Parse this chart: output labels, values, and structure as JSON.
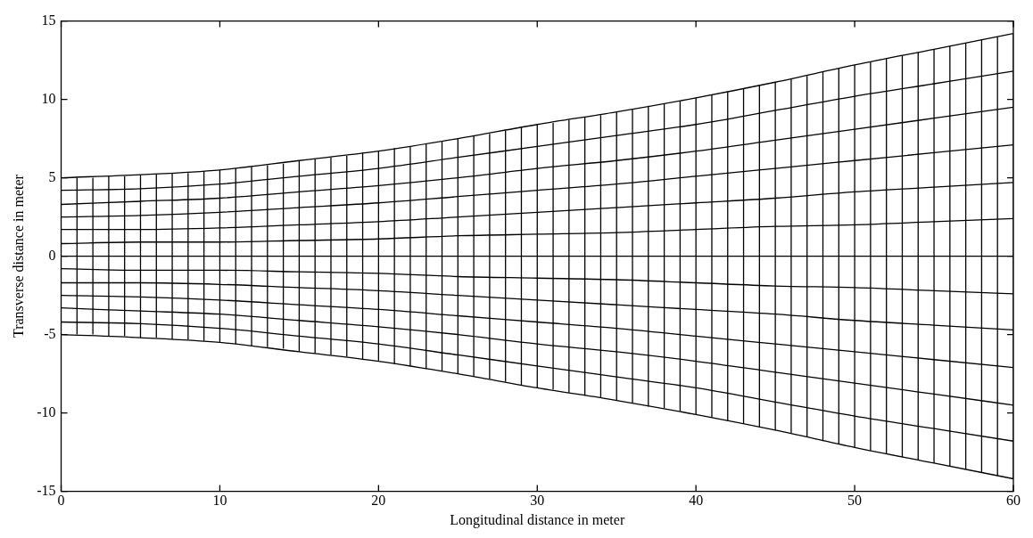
{
  "chart_data": {
    "type": "line",
    "xlabel": "Longitudinal distance in meter",
    "ylabel": "Transverse distance in meter",
    "xlim": [
      0,
      60
    ],
    "ylim": [
      -15,
      15
    ],
    "xticks": [
      0,
      10,
      20,
      30,
      40,
      50,
      60
    ],
    "yticks": [
      -15,
      -10,
      -5,
      0,
      5,
      10,
      15
    ],
    "grid": false,
    "legend": false,
    "marker": "none",
    "x": [
      0,
      5,
      10,
      15,
      20,
      25,
      30,
      35,
      40,
      45,
      50,
      55,
      60
    ],
    "series": [
      {
        "color": "#000000",
        "values": [
          5,
          5.2,
          5.5,
          6.1,
          6.7,
          7.5,
          8.4,
          9.2,
          10.1,
          11.1,
          12.2,
          13.2,
          14.2
        ]
      },
      {
        "color": "#000000",
        "values": [
          4.2,
          4.3,
          4.6,
          5.1,
          5.6,
          6.3,
          7,
          7.7,
          8.4,
          9.3,
          10.2,
          11,
          11.8
        ]
      },
      {
        "color": "#000000",
        "values": [
          3.3,
          3.5,
          3.7,
          4.1,
          4.5,
          5,
          5.6,
          6.1,
          6.7,
          7.4,
          8.1,
          8.8,
          9.5
        ]
      },
      {
        "color": "#000000",
        "values": [
          2.5,
          2.6,
          2.8,
          3.1,
          3.4,
          3.8,
          4.2,
          4.6,
          5.1,
          5.6,
          6.1,
          6.6,
          7.1
        ]
      },
      {
        "color": "#000000",
        "values": [
          1.7,
          1.7,
          1.8,
          2,
          2.2,
          2.5,
          2.8,
          3.1,
          3.4,
          3.7,
          4.1,
          4.4,
          4.7
        ]
      },
      {
        "color": "#000000",
        "values": [
          0.8,
          0.9,
          0.9,
          1,
          1.1,
          1.3,
          1.4,
          1.5,
          1.7,
          1.9,
          2,
          2.2,
          2.4
        ]
      },
      {
        "color": "#000000",
        "values": [
          0,
          0,
          0,
          0,
          0,
          0,
          0,
          0,
          0,
          0,
          0,
          0,
          0
        ]
      },
      {
        "color": "#000000",
        "values": [
          -0.8,
          -0.9,
          -0.9,
          -1,
          -1.1,
          -1.3,
          -1.4,
          -1.5,
          -1.7,
          -1.9,
          -2,
          -2.2,
          -2.4
        ]
      },
      {
        "color": "#000000",
        "values": [
          -1.7,
          -1.7,
          -1.8,
          -2,
          -2.2,
          -2.5,
          -2.8,
          -3.1,
          -3.4,
          -3.7,
          -4.1,
          -4.4,
          -4.7
        ]
      },
      {
        "color": "#000000",
        "values": [
          -2.5,
          -2.6,
          -2.8,
          -3.1,
          -3.4,
          -3.8,
          -4.2,
          -4.6,
          -5.1,
          -5.6,
          -6.1,
          -6.6,
          -7.1
        ]
      },
      {
        "color": "#000000",
        "values": [
          -3.3,
          -3.5,
          -3.7,
          -4.1,
          -4.5,
          -5,
          -5.6,
          -6.1,
          -6.7,
          -7.4,
          -8.1,
          -8.8,
          -9.5
        ]
      },
      {
        "color": "#000000",
        "values": [
          -4.2,
          -4.3,
          -4.6,
          -5.1,
          -5.6,
          -6.3,
          -7,
          -7.7,
          -8.4,
          -9.3,
          -10.2,
          -11,
          -11.8
        ]
      },
      {
        "color": "#000000",
        "values": [
          -5,
          -5.2,
          -5.5,
          -6.1,
          -6.7,
          -7.5,
          -8.4,
          -9.2,
          -10.1,
          -11.1,
          -12.2,
          -13.2,
          -14.2
        ]
      },
      {
        "color": "#000000",
        "x": [
          1,
          1
        ],
        "values": [
          -5,
          5
        ]
      },
      {
        "color": "#000000",
        "x": [
          2,
          2
        ],
        "values": [
          -5,
          5
        ]
      },
      {
        "color": "#000000",
        "x": [
          3,
          3
        ],
        "values": [
          -5.1,
          5.1
        ]
      },
      {
        "color": "#000000",
        "x": [
          4,
          4
        ],
        "values": [
          -5.1,
          5.1
        ]
      },
      {
        "color": "#000000",
        "x": [
          5,
          5
        ],
        "values": [
          -5.2,
          5.2
        ]
      },
      {
        "color": "#000000",
        "x": [
          6,
          6
        ],
        "values": [
          -5.2,
          5.2
        ]
      },
      {
        "color": "#000000",
        "x": [
          7,
          7
        ],
        "values": [
          -5.3,
          5.3
        ]
      },
      {
        "color": "#000000",
        "x": [
          8,
          8
        ],
        "values": [
          -5.3,
          5.3
        ]
      },
      {
        "color": "#000000",
        "x": [
          9,
          9
        ],
        "values": [
          -5.4,
          5.4
        ]
      },
      {
        "color": "#000000",
        "x": [
          10,
          10
        ],
        "values": [
          -5.5,
          5.5
        ]
      },
      {
        "color": "#000000",
        "x": [
          11,
          11
        ],
        "values": [
          -5.6,
          5.6
        ]
      },
      {
        "color": "#000000",
        "x": [
          12,
          12
        ],
        "values": [
          -5.7,
          5.7
        ]
      },
      {
        "color": "#000000",
        "x": [
          13,
          13
        ],
        "values": [
          -5.8,
          5.8
        ]
      },
      {
        "color": "#000000",
        "x": [
          14,
          14
        ],
        "values": [
          -5.9,
          5.9
        ]
      },
      {
        "color": "#000000",
        "x": [
          15,
          15
        ],
        "values": [
          -6.1,
          6.1
        ]
      },
      {
        "color": "#000000",
        "x": [
          16,
          16
        ],
        "values": [
          -6.2,
          6.2
        ]
      },
      {
        "color": "#000000",
        "x": [
          17,
          17
        ],
        "values": [
          -6.3,
          6.3
        ]
      },
      {
        "color": "#000000",
        "x": [
          18,
          18
        ],
        "values": [
          -6.4,
          6.4
        ]
      },
      {
        "color": "#000000",
        "x": [
          19,
          19
        ],
        "values": [
          -6.6,
          6.6
        ]
      },
      {
        "color": "#000000",
        "x": [
          20,
          20
        ],
        "values": [
          -6.7,
          6.7
        ]
      },
      {
        "color": "#000000",
        "x": [
          21,
          21
        ],
        "values": [
          -6.9,
          6.9
        ]
      },
      {
        "color": "#000000",
        "x": [
          22,
          22
        ],
        "values": [
          -7,
          7
        ]
      },
      {
        "color": "#000000",
        "x": [
          23,
          23
        ],
        "values": [
          -7.2,
          7.2
        ]
      },
      {
        "color": "#000000",
        "x": [
          24,
          24
        ],
        "values": [
          -7.3,
          7.3
        ]
      },
      {
        "color": "#000000",
        "x": [
          25,
          25
        ],
        "values": [
          -7.5,
          7.5
        ]
      },
      {
        "color": "#000000",
        "x": [
          26,
          26
        ],
        "values": [
          -7.7,
          7.7
        ]
      },
      {
        "color": "#000000",
        "x": [
          27,
          27
        ],
        "values": [
          -7.8,
          7.8
        ]
      },
      {
        "color": "#000000",
        "x": [
          28,
          28
        ],
        "values": [
          -8,
          8
        ]
      },
      {
        "color": "#000000",
        "x": [
          29,
          29
        ],
        "values": [
          -8.2,
          8.2
        ]
      },
      {
        "color": "#000000",
        "x": [
          30,
          30
        ],
        "values": [
          -8.4,
          8.4
        ]
      },
      {
        "color": "#000000",
        "x": [
          31,
          31
        ],
        "values": [
          -8.5,
          8.5
        ]
      },
      {
        "color": "#000000",
        "x": [
          32,
          32
        ],
        "values": [
          -8.7,
          8.7
        ]
      },
      {
        "color": "#000000",
        "x": [
          33,
          33
        ],
        "values": [
          -8.9,
          8.9
        ]
      },
      {
        "color": "#000000",
        "x": [
          34,
          34
        ],
        "values": [
          -9,
          9
        ]
      },
      {
        "color": "#000000",
        "x": [
          35,
          35
        ],
        "values": [
          -9.2,
          9.2
        ]
      },
      {
        "color": "#000000",
        "x": [
          36,
          36
        ],
        "values": [
          -9.4,
          9.4
        ]
      },
      {
        "color": "#000000",
        "x": [
          37,
          37
        ],
        "values": [
          -9.6,
          9.6
        ]
      },
      {
        "color": "#000000",
        "x": [
          38,
          38
        ],
        "values": [
          -9.7,
          9.7
        ]
      },
      {
        "color": "#000000",
        "x": [
          39,
          39
        ],
        "values": [
          -9.9,
          9.9
        ]
      },
      {
        "color": "#000000",
        "x": [
          40,
          40
        ],
        "values": [
          -10.1,
          10.1
        ]
      },
      {
        "color": "#000000",
        "x": [
          41,
          41
        ],
        "values": [
          -10.3,
          10.3
        ]
      },
      {
        "color": "#000000",
        "x": [
          42,
          42
        ],
        "values": [
          -10.5,
          10.5
        ]
      },
      {
        "color": "#000000",
        "x": [
          43,
          43
        ],
        "values": [
          -10.7,
          10.7
        ]
      },
      {
        "color": "#000000",
        "x": [
          44,
          44
        ],
        "values": [
          -10.9,
          10.9
        ]
      },
      {
        "color": "#000000",
        "x": [
          45,
          45
        ],
        "values": [
          -11.1,
          11.1
        ]
      },
      {
        "color": "#000000",
        "x": [
          46,
          46
        ],
        "values": [
          -11.3,
          11.3
        ]
      },
      {
        "color": "#000000",
        "x": [
          47,
          47
        ],
        "values": [
          -11.5,
          11.5
        ]
      },
      {
        "color": "#000000",
        "x": [
          48,
          48
        ],
        "values": [
          -11.8,
          11.8
        ]
      },
      {
        "color": "#000000",
        "x": [
          49,
          49
        ],
        "values": [
          -12,
          12
        ]
      },
      {
        "color": "#000000",
        "x": [
          50,
          50
        ],
        "values": [
          -12.2,
          12.2
        ]
      },
      {
        "color": "#000000",
        "x": [
          51,
          51
        ],
        "values": [
          -12.4,
          12.4
        ]
      },
      {
        "color": "#000000",
        "x": [
          52,
          52
        ],
        "values": [
          -12.6,
          12.6
        ]
      },
      {
        "color": "#000000",
        "x": [
          53,
          53
        ],
        "values": [
          -12.8,
          12.8
        ]
      },
      {
        "color": "#000000",
        "x": [
          54,
          54
        ],
        "values": [
          -13,
          13
        ]
      },
      {
        "color": "#000000",
        "x": [
          55,
          55
        ],
        "values": [
          -13.2,
          13.2
        ]
      },
      {
        "color": "#000000",
        "x": [
          56,
          56
        ],
        "values": [
          -13.4,
          13.4
        ]
      },
      {
        "color": "#000000",
        "x": [
          57,
          57
        ],
        "values": [
          -13.6,
          13.6
        ]
      },
      {
        "color": "#000000",
        "x": [
          58,
          58
        ],
        "values": [
          -13.8,
          13.8
        ]
      },
      {
        "color": "#000000",
        "x": [
          59,
          59
        ],
        "values": [
          -14,
          14
        ]
      },
      {
        "color": "#000000",
        "x": [
          60,
          60
        ],
        "values": [
          -14.2,
          14.2
        ]
      }
    ]
  }
}
